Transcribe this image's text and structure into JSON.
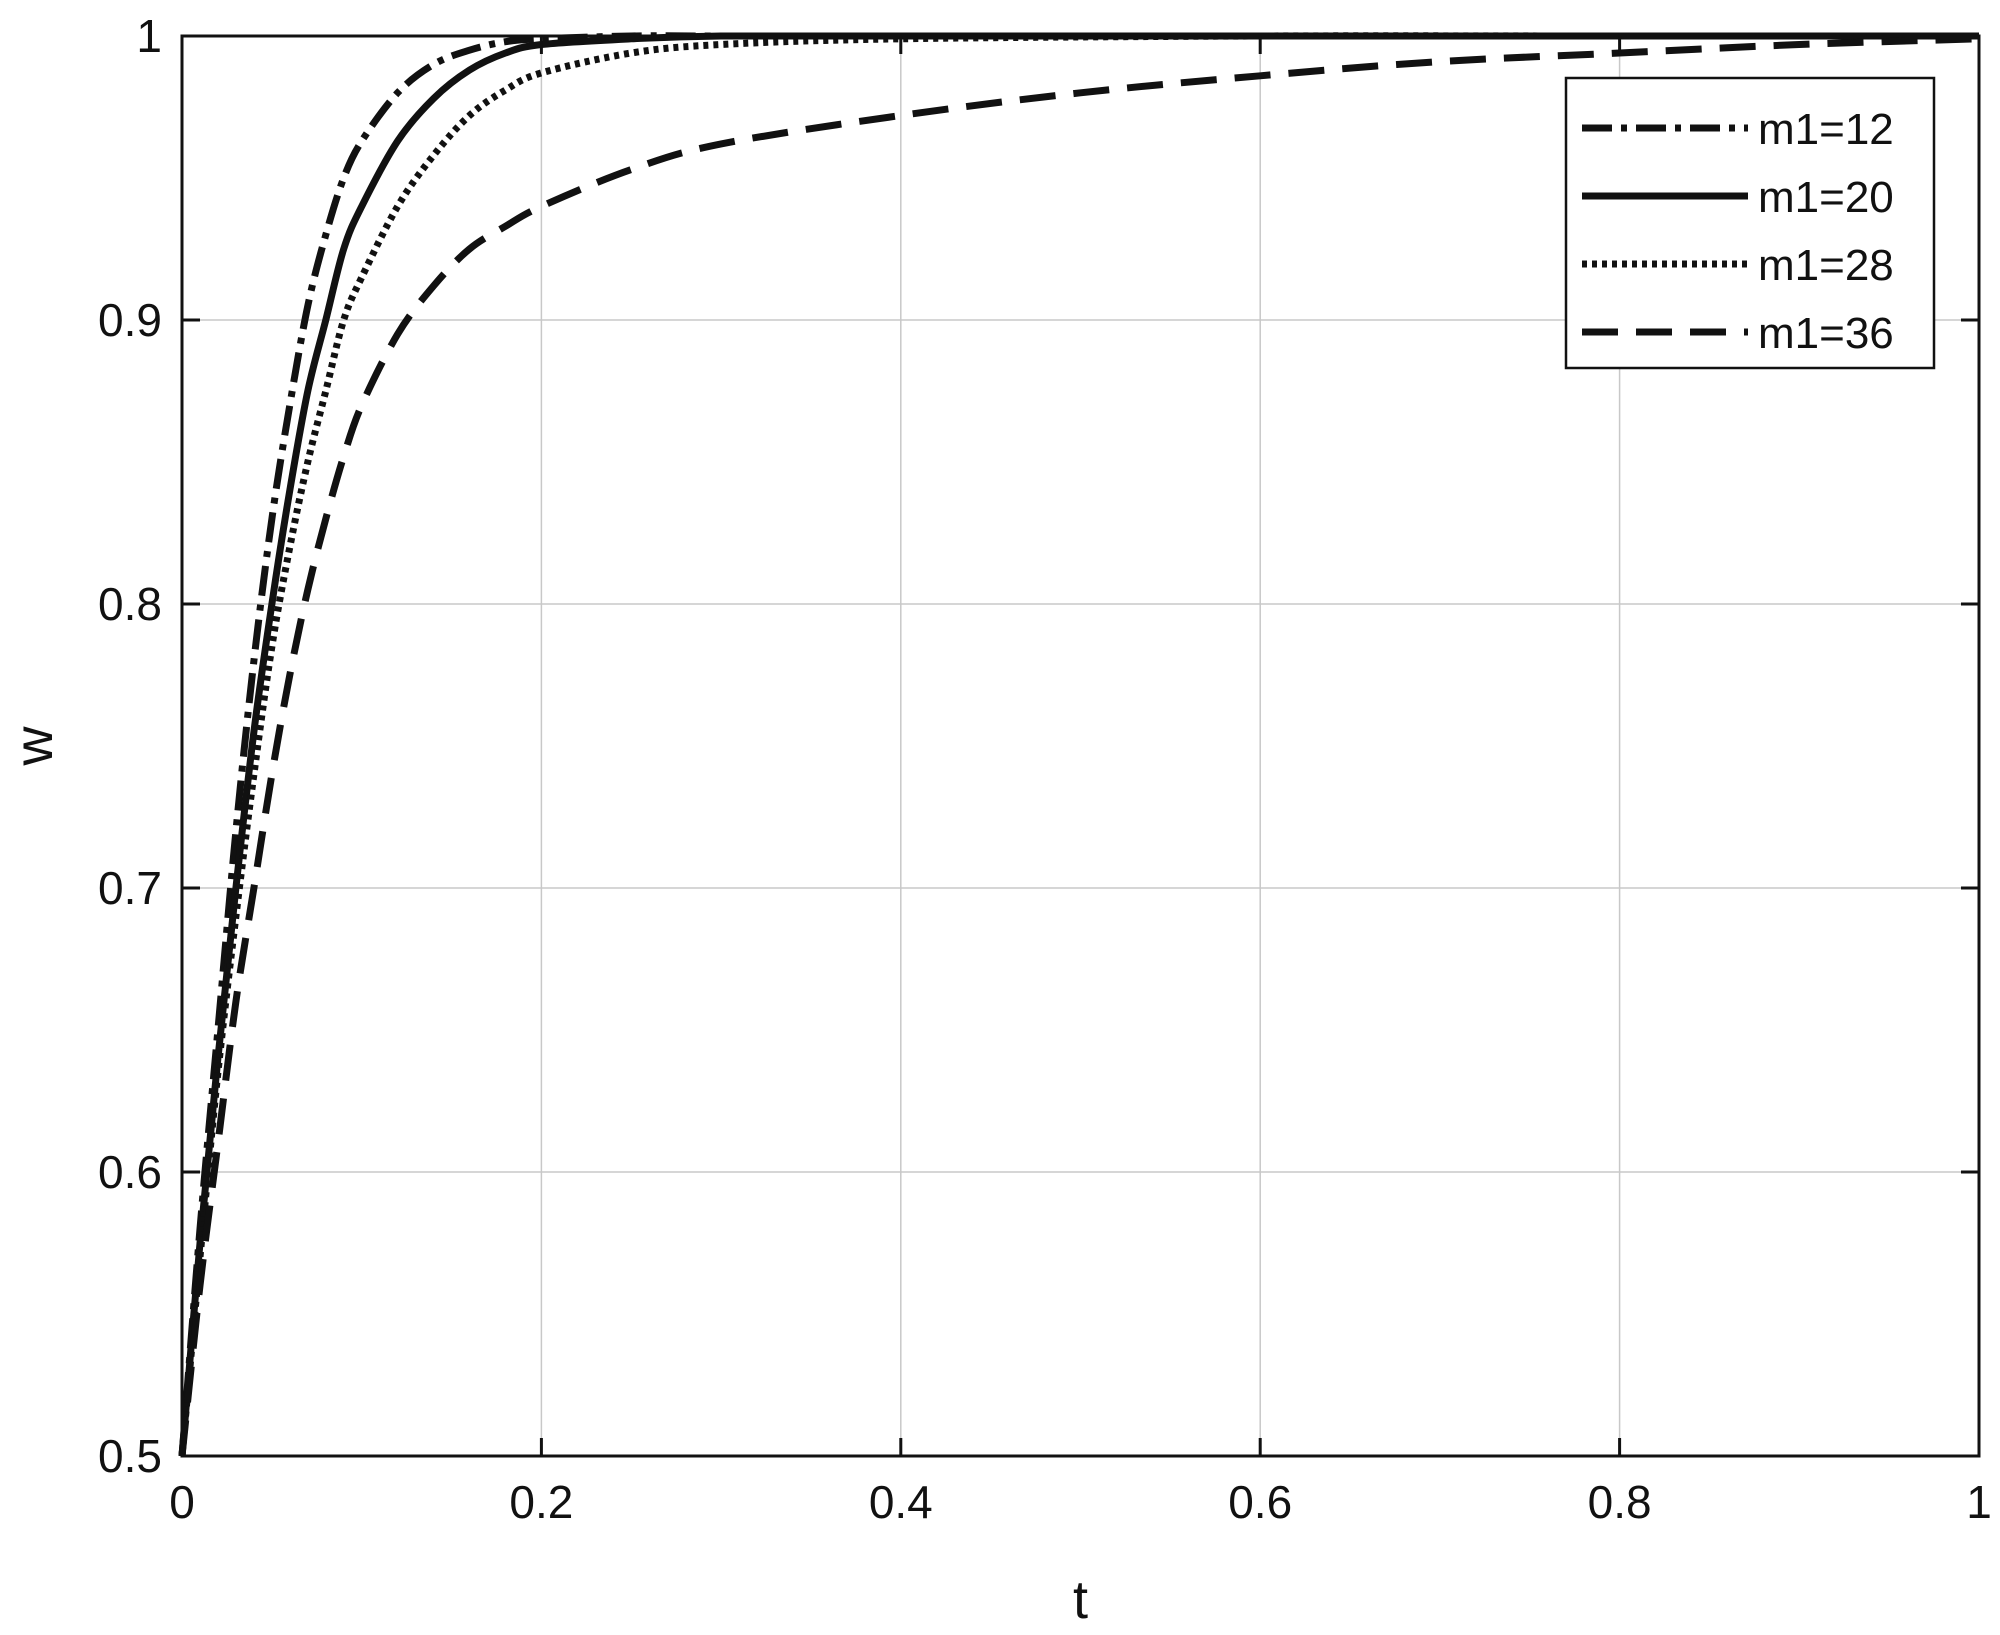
{
  "chart_data": {
    "type": "line",
    "title": "",
    "xlabel": "t",
    "ylabel": "w",
    "xlim": [
      0,
      1
    ],
    "ylim": [
      0.5,
      1
    ],
    "xticks": [
      0,
      0.2,
      0.4,
      0.6,
      0.8,
      1
    ],
    "xtick_labels": [
      "0",
      "0.2",
      "0.4",
      "0.6",
      "0.8",
      "1"
    ],
    "yticks": [
      0.5,
      0.6,
      0.7,
      0.8,
      0.9,
      1
    ],
    "ytick_labels": [
      "0.5",
      "0.6",
      "0.7",
      "0.8",
      "0.9",
      "1"
    ],
    "grid": true,
    "legend_position": "top-right",
    "line_color": "#111111",
    "series": [
      {
        "name": "m1=12",
        "style": "dashdot",
        "x": [
          0,
          0.01,
          0.02,
          0.03,
          0.04,
          0.05,
          0.06,
          0.07,
          0.08,
          0.09,
          0.1,
          0.12,
          0.14,
          0.16,
          0.18,
          0.2,
          0.25,
          0.3,
          0.4,
          0.6,
          0.8,
          1.0
        ],
        "y": [
          0.5,
          0.58,
          0.65,
          0.72,
          0.78,
          0.83,
          0.87,
          0.905,
          0.93,
          0.95,
          0.963,
          0.98,
          0.99,
          0.995,
          0.998,
          0.999,
          1.0,
          1.0,
          1.0,
          1.0,
          1.0,
          1.0
        ]
      },
      {
        "name": "m1=20",
        "style": "solid",
        "x": [
          0,
          0.01,
          0.02,
          0.03,
          0.04,
          0.05,
          0.06,
          0.07,
          0.08,
          0.09,
          0.1,
          0.12,
          0.14,
          0.16,
          0.18,
          0.2,
          0.25,
          0.3,
          0.4,
          0.6,
          0.8,
          1.0
        ],
        "y": [
          0.5,
          0.575,
          0.64,
          0.7,
          0.755,
          0.8,
          0.84,
          0.875,
          0.9,
          0.925,
          0.94,
          0.963,
          0.978,
          0.988,
          0.994,
          0.997,
          0.999,
          1.0,
          1.0,
          1.0,
          1.0,
          1.0
        ]
      },
      {
        "name": "m1=28",
        "style": "dotted",
        "x": [
          0,
          0.01,
          0.02,
          0.03,
          0.04,
          0.05,
          0.06,
          0.07,
          0.08,
          0.09,
          0.1,
          0.12,
          0.14,
          0.16,
          0.18,
          0.2,
          0.25,
          0.3,
          0.4,
          0.6,
          0.8,
          1.0
        ],
        "y": [
          0.5,
          0.57,
          0.635,
          0.69,
          0.74,
          0.785,
          0.82,
          0.85,
          0.875,
          0.9,
          0.915,
          0.94,
          0.958,
          0.972,
          0.981,
          0.987,
          0.994,
          0.997,
          0.999,
          1.0,
          1.0,
          1.0
        ]
      },
      {
        "name": "m1=36",
        "style": "dashed",
        "x": [
          0,
          0.01,
          0.02,
          0.03,
          0.04,
          0.05,
          0.06,
          0.07,
          0.08,
          0.09,
          0.1,
          0.12,
          0.14,
          0.16,
          0.18,
          0.2,
          0.25,
          0.3,
          0.4,
          0.5,
          0.6,
          0.7,
          0.8,
          0.9,
          1.0
        ],
        "y": [
          0.5,
          0.56,
          0.61,
          0.66,
          0.7,
          0.74,
          0.775,
          0.805,
          0.83,
          0.852,
          0.87,
          0.895,
          0.912,
          0.925,
          0.933,
          0.94,
          0.953,
          0.962,
          0.972,
          0.98,
          0.986,
          0.991,
          0.994,
          0.997,
          0.999
        ]
      }
    ]
  }
}
